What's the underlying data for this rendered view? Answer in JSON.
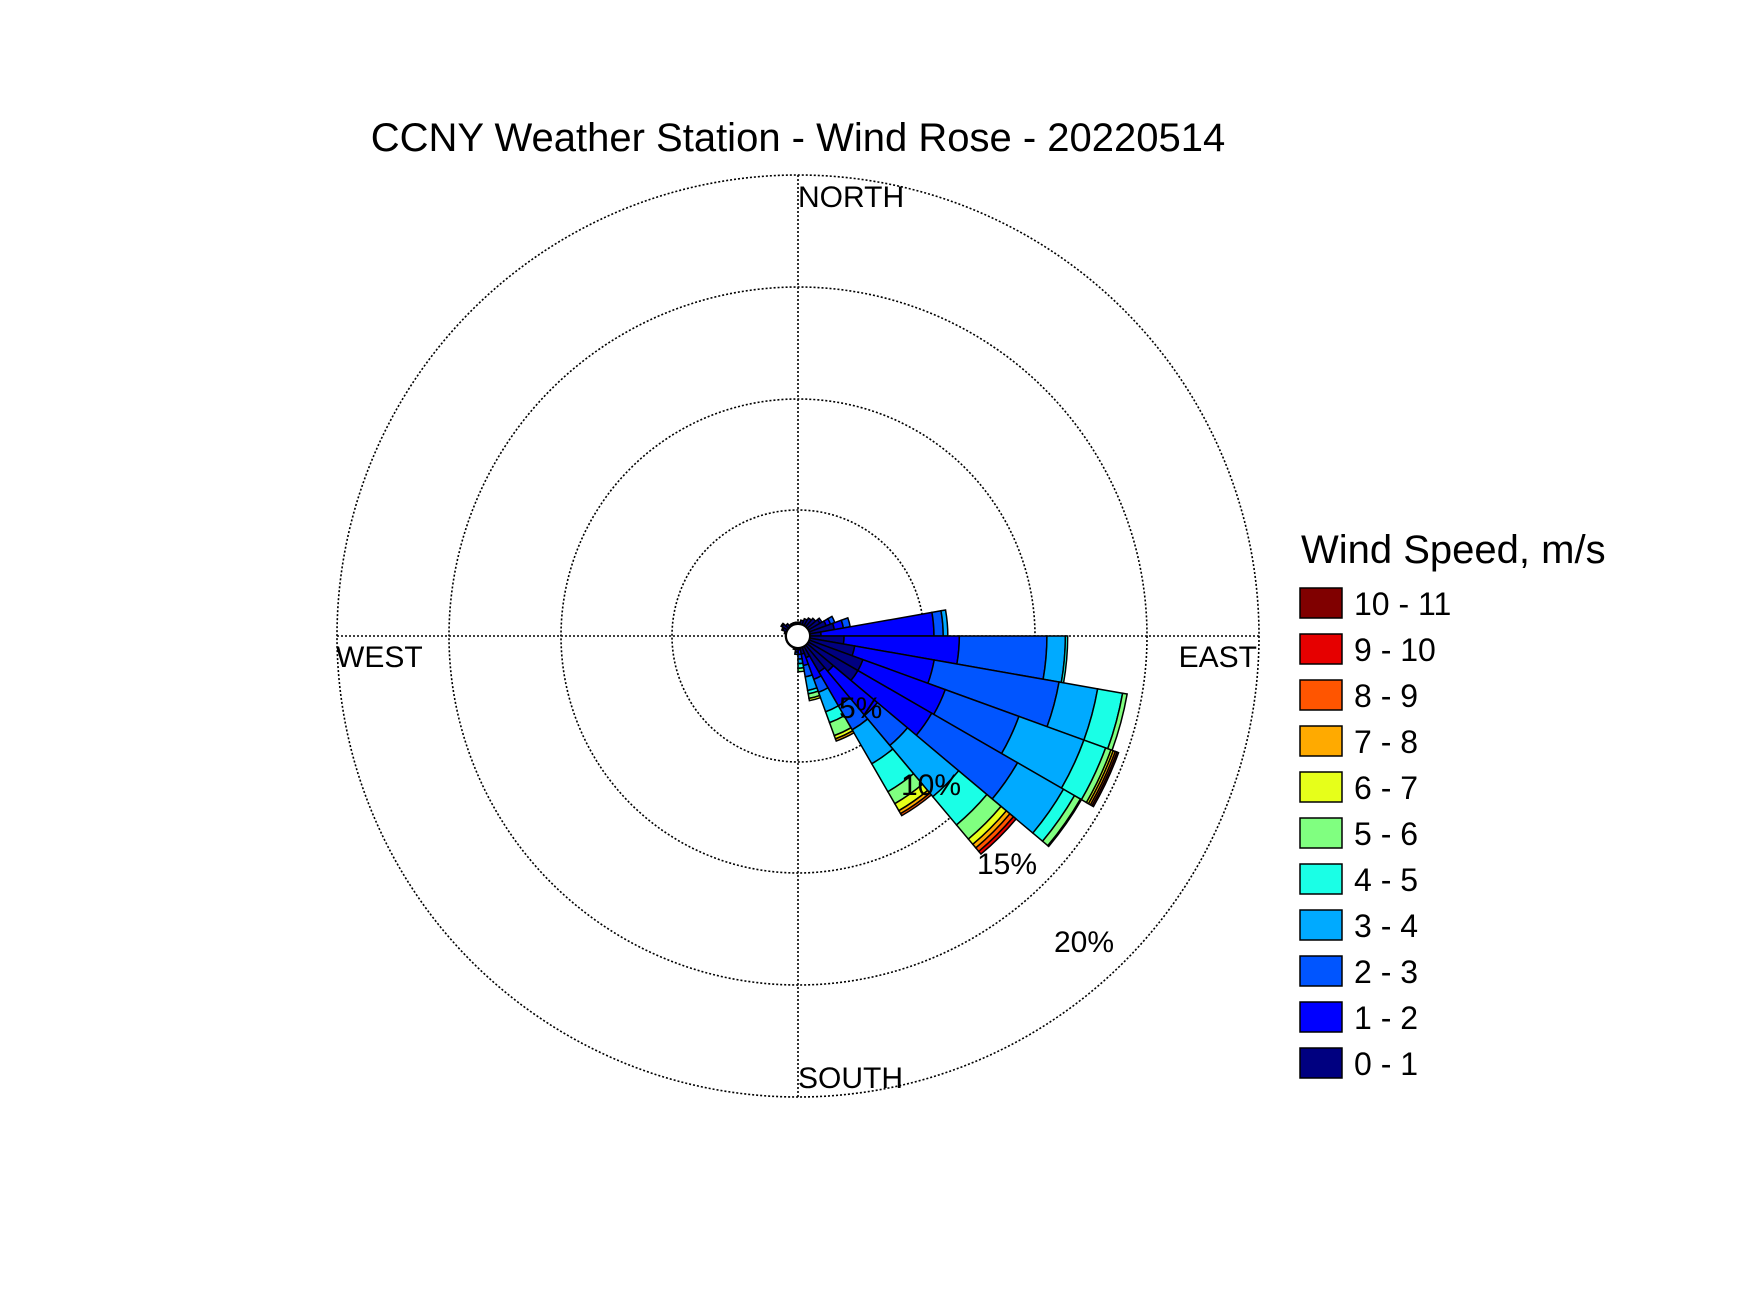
{
  "chart_data": {
    "type": "wind-rose",
    "title": "CCNY Weather Station - Wind Rose - 20220514",
    "direction_labels": {
      "north": "NORTH",
      "east": "EAST",
      "south": "SOUTH",
      "west": "WEST"
    },
    "ring_labels": [
      "5%",
      "10%",
      "15%",
      "20%"
    ],
    "r_max_percent": 20,
    "legend": {
      "title": "Wind Speed, m/s",
      "bins": [
        {
          "label": "10 - 11",
          "color": "#800000"
        },
        {
          "label": "9 - 10",
          "color": "#e60000"
        },
        {
          "label": "8 - 9",
          "color": "#ff5500"
        },
        {
          "label": "7 - 8",
          "color": "#ffaa00"
        },
        {
          "label": "6 - 7",
          "color": "#e6ff1a"
        },
        {
          "label": "5 - 6",
          "color": "#80ff80"
        },
        {
          "label": "4 - 5",
          "color": "#1affe6"
        },
        {
          "label": "3 - 4",
          "color": "#00aaff"
        },
        {
          "label": "2 - 3",
          "color": "#0055ff"
        },
        {
          "label": "1 - 2",
          "color": "#0000ff"
        },
        {
          "label": "0 - 1",
          "color": "#000080"
        }
      ]
    },
    "speed_bin_order": [
      "0 - 1",
      "1 - 2",
      "2 - 3",
      "3 - 4",
      "4 - 5",
      "5 - 6",
      "6 - 7",
      "7 - 8",
      "8 - 9",
      "9 - 10",
      "10 - 11"
    ],
    "sector_width_deg": 10,
    "sectors": [
      {
        "direction_deg": 355,
        "cumulative_percent": [
          0.6
        ]
      },
      {
        "direction_deg": 5,
        "cumulative_percent": [
          0.6
        ]
      },
      {
        "direction_deg": 15,
        "cumulative_percent": [
          0.7
        ]
      },
      {
        "direction_deg": 25,
        "cumulative_percent": [
          0.8
        ]
      },
      {
        "direction_deg": 35,
        "cumulative_percent": [
          0.9
        ]
      },
      {
        "direction_deg": 45,
        "cumulative_percent": [
          1.0
        ]
      },
      {
        "direction_deg": 55,
        "cumulative_percent": [
          1.1,
          1.2
        ]
      },
      {
        "direction_deg": 65,
        "cumulative_percent": [
          1.3,
          1.5,
          1.7
        ]
      },
      {
        "direction_deg": 75,
        "cumulative_percent": [
          1.6,
          2.0,
          2.3
        ]
      },
      {
        "direction_deg": 85,
        "cumulative_percent": [
          1.0,
          5.9,
          6.3,
          6.5
        ]
      },
      {
        "direction_deg": 95,
        "cumulative_percent": [
          2.0,
          7.0,
          10.8,
          11.6,
          11.7
        ]
      },
      {
        "direction_deg": 105,
        "cumulative_percent": [
          2.5,
          6.0,
          11.5,
          13.2,
          14.3,
          14.5
        ]
      },
      {
        "direction_deg": 115,
        "cumulative_percent": [
          3.0,
          6.8,
          10.2,
          13.2,
          14.2,
          14.45,
          14.55,
          14.65,
          14.73,
          14.8
        ]
      },
      {
        "direction_deg": 125,
        "cumulative_percent": [
          3.0,
          6.7,
          11.0,
          13.3,
          13.85,
          14.15,
          14.2
        ]
      },
      {
        "direction_deg": 135,
        "cumulative_percent": [
          2.0,
          4.5,
          6.2,
          9.1,
          10.7,
          11.5,
          11.8,
          12.0,
          12.2,
          12.35
        ]
      },
      {
        "direction_deg": 145,
        "cumulative_percent": [
          1.8,
          3.5,
          4.7,
          6.4,
          7.8,
          8.4,
          8.75,
          8.9,
          9.0
        ]
      },
      {
        "direction_deg": 155,
        "cumulative_percent": [
          1.0,
          2.0,
          2.6,
          3.5,
          4.0,
          4.6,
          4.75,
          4.85
        ]
      },
      {
        "direction_deg": 165,
        "cumulative_percent": [
          0.8,
          1.3,
          1.8,
          2.4,
          2.55,
          2.75,
          2.85
        ]
      },
      {
        "direction_deg": 175,
        "cumulative_percent": [
          0.6,
          0.8,
          1.0,
          1.2,
          1.4,
          1.55
        ]
      },
      {
        "direction_deg": 185,
        "cumulative_percent": [
          0.6,
          0.7,
          0.8
        ]
      },
      {
        "direction_deg": 195,
        "cumulative_percent": [
          0.55,
          0.6
        ]
      },
      {
        "direction_deg": 205,
        "cumulative_percent": [
          0.5
        ]
      },
      {
        "direction_deg": 215,
        "cumulative_percent": [
          0.5
        ]
      },
      {
        "direction_deg": 225,
        "cumulative_percent": [
          0.5
        ]
      },
      {
        "direction_deg": 235,
        "cumulative_percent": [
          0.5
        ]
      },
      {
        "direction_deg": 245,
        "cumulative_percent": [
          0.5
        ]
      },
      {
        "direction_deg": 255,
        "cumulative_percent": [
          0.5
        ]
      },
      {
        "direction_deg": 265,
        "cumulative_percent": [
          0.5
        ]
      },
      {
        "direction_deg": 275,
        "cumulative_percent": [
          0.5
        ]
      },
      {
        "direction_deg": 285,
        "cumulative_percent": [
          0.6
        ]
      },
      {
        "direction_deg": 295,
        "cumulative_percent": [
          0.7,
          0.75
        ]
      },
      {
        "direction_deg": 305,
        "cumulative_percent": [
          0.8,
          0.85
        ]
      },
      {
        "direction_deg": 315,
        "cumulative_percent": [
          0.7
        ]
      },
      {
        "direction_deg": 325,
        "cumulative_percent": [
          0.6
        ]
      },
      {
        "direction_deg": 335,
        "cumulative_percent": [
          0.6
        ]
      },
      {
        "direction_deg": 345,
        "cumulative_percent": [
          0.6
        ]
      }
    ]
  }
}
